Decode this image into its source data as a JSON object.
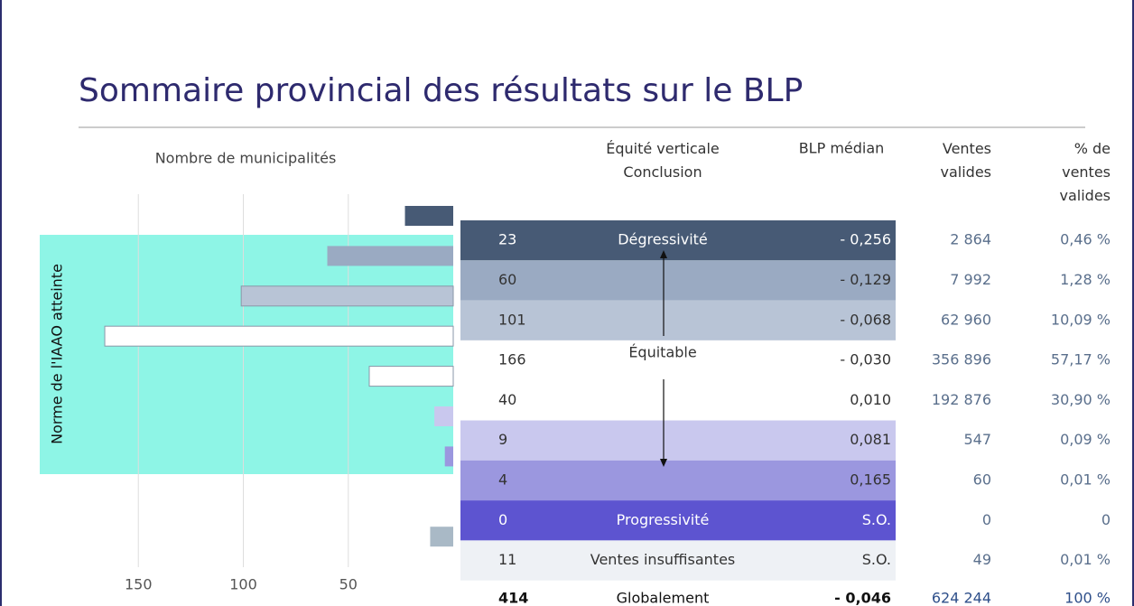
{
  "title": "Sommaire provincial des résultats sur le BLP",
  "chart_data": {
    "type": "bar",
    "orientation": "horizontal",
    "reversed": true,
    "xlabel": "Nombre de municipalités",
    "annotation": "Norme de l'IAAO atteinte",
    "values": [
      23,
      60,
      101,
      166,
      40,
      9,
      4,
      0,
      11
    ],
    "colors": [
      "#475a75",
      "#9aaac2",
      "#b8c4d6",
      "#ffffff",
      "#ffffff",
      "#c9c8ee",
      "#9b97df",
      "#5d54d0",
      "#a9b9c6"
    ],
    "xlim": [
      0,
      200
    ],
    "xticks": [
      150,
      100,
      50
    ],
    "grid": true
  },
  "table": {
    "headers": [
      "Équité verticale Conclusion",
      "BLP médian",
      "Ventes valides",
      "% de ventes valides"
    ],
    "rows": [
      [
        "Dégressivité",
        "- 0,256",
        "2 864",
        "0,46 %"
      ],
      [
        "",
        "- 0,129",
        "7 992",
        "1,28 %"
      ],
      [
        "",
        "- 0,068",
        "62 960",
        "10,09 %"
      ],
      [
        "Équitable",
        "- 0,030",
        "356 896",
        "57,17 %"
      ],
      [
        "",
        "0,010",
        "192 876",
        "30,90 %"
      ],
      [
        "",
        "0,081",
        "547",
        "0,09 %"
      ],
      [
        "",
        "0,165",
        "60",
        "0,01 %"
      ],
      [
        "Progressivité",
        "S.O.",
        "0",
        "0"
      ],
      [
        "Ventes insuffisantes",
        "S.O.",
        "49",
        "0,01 %"
      ]
    ],
    "total": [
      "414",
      "Globalement",
      "- 0,046",
      "624 244",
      "100 %"
    ]
  }
}
